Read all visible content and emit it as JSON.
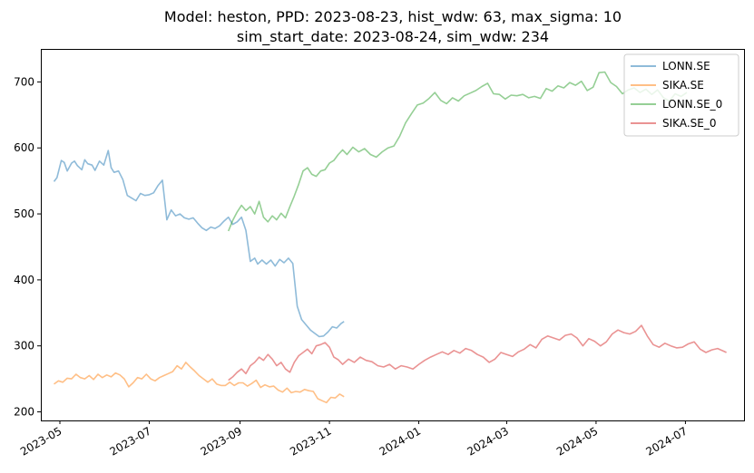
{
  "chart_data": {
    "type": "line",
    "title": "Model: heston, PPD: 2023-08-23, hist_wdw: 63, max_sigma: 10",
    "subtitle": "sim_start_date: 2023-08-24, sim_wdw: 234",
    "xlabel": "",
    "ylabel": "",
    "xlim": [
      "2023-04-18",
      "2024-08-10"
    ],
    "ylim": [
      187,
      750
    ],
    "x_ticks": [
      "2023-05",
      "2023-07",
      "2023-09",
      "2023-11",
      "2024-01",
      "2024-03",
      "2024-05",
      "2024-07"
    ],
    "y_ticks": [
      200,
      300,
      400,
      500,
      600,
      700
    ],
    "grid": false,
    "legend_position": "top-right",
    "series": [
      {
        "name": "LONN.SE",
        "color": "#1f77b4",
        "x": [
          "2023-04-27",
          "2023-04-29",
          "2023-05-02",
          "2023-05-04",
          "2023-05-06",
          "2023-05-09",
          "2023-05-11",
          "2023-05-13",
          "2023-05-16",
          "2023-05-18",
          "2023-05-20",
          "2023-05-23",
          "2023-05-25",
          "2023-05-28",
          "2023-05-31",
          "2023-06-03",
          "2023-06-05",
          "2023-06-07",
          "2023-06-10",
          "2023-06-13",
          "2023-06-16",
          "2023-06-19",
          "2023-06-22",
          "2023-06-25",
          "2023-06-28",
          "2023-07-01",
          "2023-07-04",
          "2023-07-07",
          "2023-07-10",
          "2023-07-13",
          "2023-07-16",
          "2023-07-19",
          "2023-07-22",
          "2023-07-25",
          "2023-07-28",
          "2023-07-31",
          "2023-08-03",
          "2023-08-06",
          "2023-08-09",
          "2023-08-12",
          "2023-08-15",
          "2023-08-18",
          "2023-08-21",
          "2023-08-24",
          "2023-08-27",
          "2023-08-30",
          "2023-09-02",
          "2023-09-05",
          "2023-09-08",
          "2023-09-11",
          "2023-09-13",
          "2023-09-16",
          "2023-09-19",
          "2023-09-22",
          "2023-09-25",
          "2023-09-28",
          "2023-10-01",
          "2023-10-04",
          "2023-10-07",
          "2023-10-10",
          "2023-10-13",
          "2023-10-16",
          "2023-10-19",
          "2023-10-22",
          "2023-10-25",
          "2023-10-28",
          "2023-10-31",
          "2023-11-03",
          "2023-11-06",
          "2023-11-09",
          "2023-11-11"
        ],
        "values": [
          549,
          555,
          581,
          578,
          565,
          577,
          580,
          573,
          567,
          582,
          576,
          574,
          566,
          580,
          574,
          596,
          570,
          563,
          565,
          552,
          528,
          524,
          520,
          531,
          528,
          529,
          532,
          543,
          551,
          491,
          506,
          497,
          500,
          494,
          492,
          494,
          486,
          479,
          475,
          480,
          478,
          482,
          489,
          495,
          484,
          488,
          495,
          475,
          428,
          433,
          424,
          430,
          424,
          430,
          421,
          431,
          426,
          433,
          425,
          360,
          340,
          332,
          324,
          319,
          314,
          315,
          321,
          329,
          327,
          334,
          337
        ]
      },
      {
        "name": "SIKA.SE",
        "color": "#ff7f0e",
        "x": [
          "2023-04-27",
          "2023-04-30",
          "2023-05-03",
          "2023-05-06",
          "2023-05-09",
          "2023-05-12",
          "2023-05-15",
          "2023-05-18",
          "2023-05-21",
          "2023-05-24",
          "2023-05-27",
          "2023-05-30",
          "2023-06-02",
          "2023-06-05",
          "2023-06-08",
          "2023-06-11",
          "2023-06-14",
          "2023-06-17",
          "2023-06-20",
          "2023-06-23",
          "2023-06-26",
          "2023-06-29",
          "2023-07-02",
          "2023-07-05",
          "2023-07-08",
          "2023-07-11",
          "2023-07-14",
          "2023-07-17",
          "2023-07-20",
          "2023-07-23",
          "2023-07-26",
          "2023-07-29",
          "2023-08-01",
          "2023-08-04",
          "2023-08-07",
          "2023-08-10",
          "2023-08-13",
          "2023-08-16",
          "2023-08-19",
          "2023-08-22",
          "2023-08-25",
          "2023-08-28",
          "2023-08-31",
          "2023-09-03",
          "2023-09-06",
          "2023-09-09",
          "2023-09-12",
          "2023-09-15",
          "2023-09-18",
          "2023-09-21",
          "2023-09-24",
          "2023-09-27",
          "2023-09-30",
          "2023-10-03",
          "2023-10-06",
          "2023-10-09",
          "2023-10-12",
          "2023-10-15",
          "2023-10-18",
          "2023-10-21",
          "2023-10-24",
          "2023-10-27",
          "2023-10-30",
          "2023-11-02",
          "2023-11-05",
          "2023-11-08",
          "2023-11-11"
        ],
        "values": [
          242,
          247,
          245,
          251,
          250,
          257,
          252,
          250,
          255,
          249,
          257,
          252,
          256,
          253,
          259,
          256,
          250,
          238,
          244,
          252,
          250,
          257,
          250,
          247,
          252,
          255,
          258,
          261,
          270,
          265,
          275,
          268,
          262,
          255,
          250,
          245,
          250,
          242,
          240,
          240,
          245,
          240,
          244,
          244,
          239,
          243,
          248,
          237,
          241,
          238,
          239,
          233,
          230,
          236,
          229,
          231,
          230,
          234,
          232,
          231,
          220,
          217,
          214,
          222,
          221,
          227,
          223
        ]
      },
      {
        "name": "LONN.SE_0",
        "color": "#2ca02c",
        "x": [
          "2023-08-24",
          "2023-08-27",
          "2023-08-30",
          "2023-09-02",
          "2023-09-05",
          "2023-09-08",
          "2023-09-11",
          "2023-09-14",
          "2023-09-17",
          "2023-09-20",
          "2023-09-23",
          "2023-09-26",
          "2023-09-29",
          "2023-10-02",
          "2023-10-05",
          "2023-10-08",
          "2023-10-11",
          "2023-10-14",
          "2023-10-17",
          "2023-10-20",
          "2023-10-23",
          "2023-10-26",
          "2023-10-29",
          "2023-11-01",
          "2023-11-04",
          "2023-11-07",
          "2023-11-10",
          "2023-11-13",
          "2023-11-17",
          "2023-11-21",
          "2023-11-25",
          "2023-11-29",
          "2023-12-03",
          "2023-12-07",
          "2023-12-11",
          "2023-12-15",
          "2023-12-19",
          "2023-12-23",
          "2023-12-27",
          "2023-12-31",
          "2024-01-04",
          "2024-01-08",
          "2024-01-12",
          "2024-01-16",
          "2024-01-20",
          "2024-01-24",
          "2024-01-28",
          "2024-02-01",
          "2024-02-05",
          "2024-02-09",
          "2024-02-13",
          "2024-02-17",
          "2024-02-21",
          "2024-02-25",
          "2024-02-29",
          "2024-03-04",
          "2024-03-08",
          "2024-03-12",
          "2024-03-16",
          "2024-03-20",
          "2024-03-24",
          "2024-03-28",
          "2024-04-01",
          "2024-04-05",
          "2024-04-09",
          "2024-04-13",
          "2024-04-17",
          "2024-04-21",
          "2024-04-25",
          "2024-04-29",
          "2024-05-03",
          "2024-05-07",
          "2024-05-11",
          "2024-05-15",
          "2024-05-19",
          "2024-05-23",
          "2024-05-27",
          "2024-05-31",
          "2024-06-04",
          "2024-06-08",
          "2024-06-12",
          "2024-06-16",
          "2024-06-20",
          "2024-06-24",
          "2024-06-28",
          "2024-07-02"
        ],
        "values": [
          474,
          490,
          503,
          513,
          505,
          511,
          500,
          519,
          495,
          488,
          497,
          491,
          501,
          494,
          511,
          527,
          545,
          565,
          570,
          560,
          557,
          565,
          567,
          577,
          581,
          590,
          597,
          590,
          601,
          594,
          599,
          590,
          586,
          594,
          600,
          603,
          618,
          638,
          652,
          665,
          668,
          675,
          684,
          672,
          667,
          676,
          671,
          679,
          683,
          687,
          693,
          698,
          682,
          681,
          674,
          680,
          679,
          681,
          676,
          678,
          675,
          690,
          686,
          694,
          691,
          699,
          695,
          701,
          687,
          692,
          714,
          715,
          699,
          693,
          682,
          688,
          691,
          684,
          689,
          681,
          688,
          676,
          671,
          682,
          678,
          684
        ]
      },
      {
        "name": "SIKA.SE_0",
        "color": "#d62728",
        "x": [
          "2023-08-24",
          "2023-08-27",
          "2023-08-30",
          "2023-09-02",
          "2023-09-05",
          "2023-09-08",
          "2023-09-11",
          "2023-09-14",
          "2023-09-17",
          "2023-09-20",
          "2023-09-23",
          "2023-09-26",
          "2023-09-29",
          "2023-10-02",
          "2023-10-05",
          "2023-10-08",
          "2023-10-11",
          "2023-10-14",
          "2023-10-17",
          "2023-10-20",
          "2023-10-23",
          "2023-10-26",
          "2023-10-29",
          "2023-11-01",
          "2023-11-04",
          "2023-11-07",
          "2023-11-10",
          "2023-11-14",
          "2023-11-18",
          "2023-11-22",
          "2023-11-26",
          "2023-11-30",
          "2023-12-04",
          "2023-12-08",
          "2023-12-12",
          "2023-12-16",
          "2023-12-20",
          "2023-12-24",
          "2023-12-28",
          "2024-01-01",
          "2024-01-05",
          "2024-01-09",
          "2024-01-13",
          "2024-01-17",
          "2024-01-21",
          "2024-01-25",
          "2024-01-29",
          "2024-02-02",
          "2024-02-06",
          "2024-02-10",
          "2024-02-14",
          "2024-02-18",
          "2024-02-22",
          "2024-02-26",
          "2024-03-01",
          "2024-03-05",
          "2024-03-09",
          "2024-03-13",
          "2024-03-17",
          "2024-03-21",
          "2024-03-25",
          "2024-03-29",
          "2024-04-02",
          "2024-04-06",
          "2024-04-10",
          "2024-04-14",
          "2024-04-18",
          "2024-04-22",
          "2024-04-26",
          "2024-04-30",
          "2024-05-04",
          "2024-05-08",
          "2024-05-12",
          "2024-05-16",
          "2024-05-20",
          "2024-05-24",
          "2024-05-28",
          "2024-06-01",
          "2024-06-05",
          "2024-06-09",
          "2024-06-13",
          "2024-06-17",
          "2024-06-21",
          "2024-06-25",
          "2024-06-29",
          "2024-07-03",
          "2024-07-07",
          "2024-07-11",
          "2024-07-15",
          "2024-07-19",
          "2024-07-23",
          "2024-07-27",
          "2024-07-29"
        ],
        "values": [
          248,
          253,
          260,
          265,
          258,
          270,
          275,
          283,
          278,
          287,
          280,
          270,
          275,
          265,
          260,
          275,
          285,
          290,
          295,
          288,
          300,
          302,
          305,
          298,
          283,
          279,
          272,
          280,
          275,
          283,
          278,
          276,
          270,
          268,
          272,
          265,
          270,
          268,
          265,
          272,
          278,
          283,
          287,
          291,
          287,
          293,
          289,
          296,
          293,
          287,
          283,
          275,
          280,
          290,
          287,
          284,
          291,
          295,
          302,
          297,
          310,
          315,
          312,
          309,
          316,
          318,
          312,
          300,
          311,
          307,
          300,
          306,
          318,
          324,
          320,
          318,
          322,
          331,
          315,
          302,
          298,
          304,
          300,
          297,
          298,
          303,
          306,
          295,
          290,
          294,
          296,
          292,
          290
        ]
      }
    ]
  }
}
